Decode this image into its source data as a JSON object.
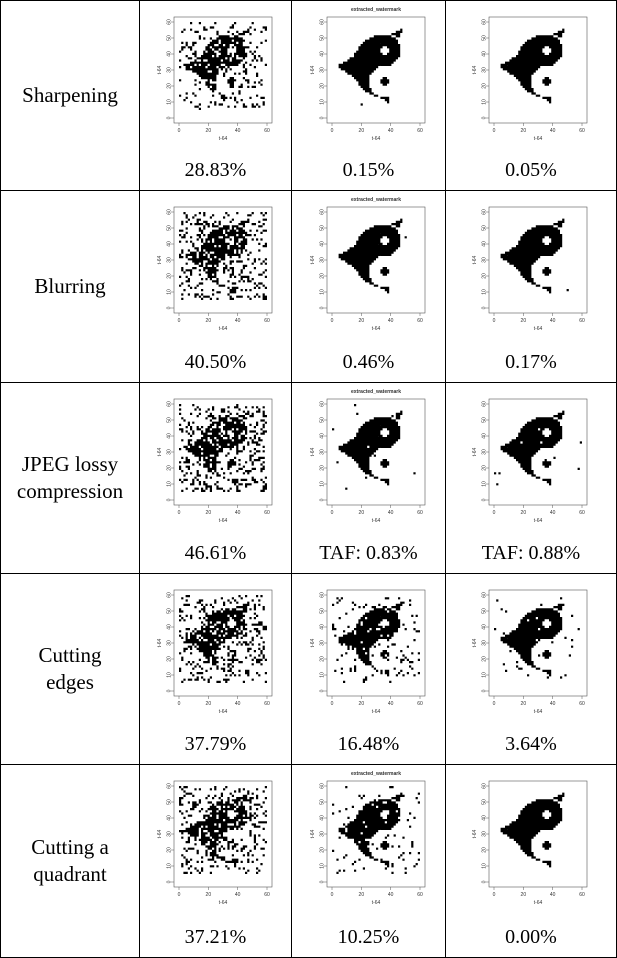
{
  "plot_axes": {
    "xlabel": "t-64",
    "ylabel": "t-64",
    "xticks": [
      0,
      20,
      40,
      60
    ],
    "yticks": [
      0,
      10,
      20,
      30,
      40,
      50,
      60
    ]
  },
  "table": {
    "rows": [
      {
        "label": [
          "Sharpening"
        ],
        "cells": [
          {
            "caption": "28.83%"
          },
          {
            "title": "extracted_watermark",
            "caption": "0.15%"
          },
          {
            "caption": "0.05%"
          }
        ]
      },
      {
        "label": [
          "Blurring"
        ],
        "cells": [
          {
            "caption": "40.50%"
          },
          {
            "title": "extracted_watermark",
            "caption": "0.46%"
          },
          {
            "caption": "0.17%"
          }
        ]
      },
      {
        "label": [
          "JPEG lossy",
          "compression"
        ],
        "cells": [
          {
            "caption": "46.61%"
          },
          {
            "title": "extracted_watermark",
            "caption": "TAF: 0.83%"
          },
          {
            "caption": "TAF: 0.88%"
          }
        ]
      },
      {
        "label": [
          "Cutting",
          "edges"
        ],
        "cells": [
          {
            "caption": "37.79%"
          },
          {
            "caption": "16.48%"
          },
          {
            "caption": "3.64%"
          }
        ]
      },
      {
        "label": [
          "Cutting a",
          "quadrant"
        ],
        "cells": [
          {
            "caption": "37.21%"
          },
          {
            "title": "extracted_watermark",
            "caption": "10.25%"
          },
          {
            "caption": "0.00%"
          }
        ]
      }
    ]
  }
}
